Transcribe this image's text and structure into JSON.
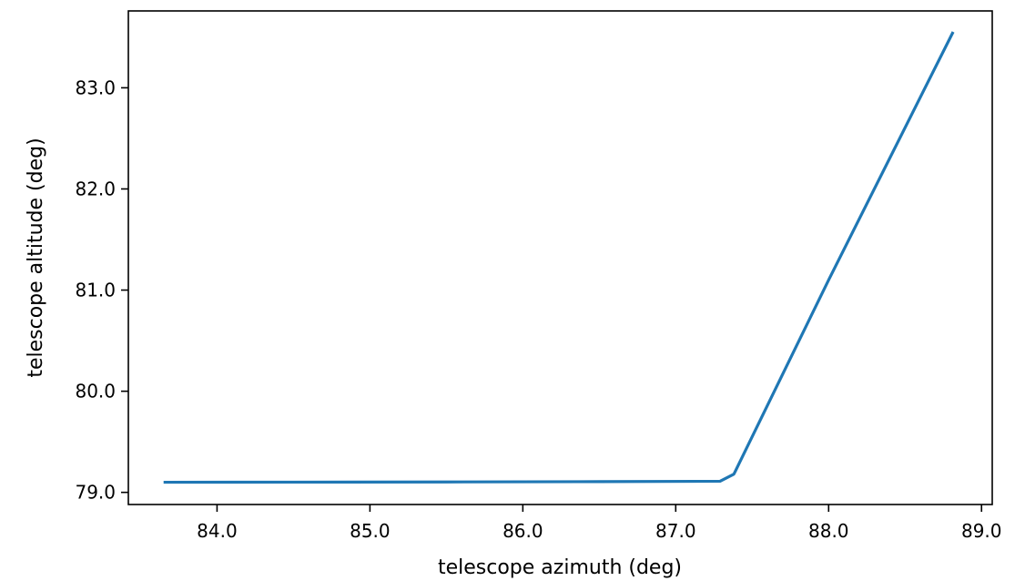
{
  "chart_data": {
    "type": "line",
    "title": "",
    "xlabel": "telescope azimuth (deg)",
    "ylabel": "telescope altitude (deg)",
    "xlim": [
      83.42,
      89.07
    ],
    "ylim": [
      78.88,
      83.76
    ],
    "xticks": [
      84.0,
      85.0,
      86.0,
      87.0,
      88.0,
      89.0
    ],
    "xtick_labels": [
      "84.0",
      "85.0",
      "86.0",
      "87.0",
      "88.0",
      "89.0"
    ],
    "yticks": [
      79.0,
      80.0,
      81.0,
      82.0,
      83.0
    ],
    "ytick_labels": [
      "79.0",
      "80.0",
      "81.0",
      "82.0",
      "83.0"
    ],
    "grid": false,
    "series": [
      {
        "color": "#1f77b4",
        "x": [
          83.66,
          84.5,
          85.5,
          86.5,
          87.29,
          87.38,
          87.39,
          88.0,
          88.81
        ],
        "y": [
          79.1,
          79.101,
          79.103,
          79.106,
          79.11,
          79.18,
          79.21,
          81.1,
          83.54
        ]
      }
    ]
  }
}
